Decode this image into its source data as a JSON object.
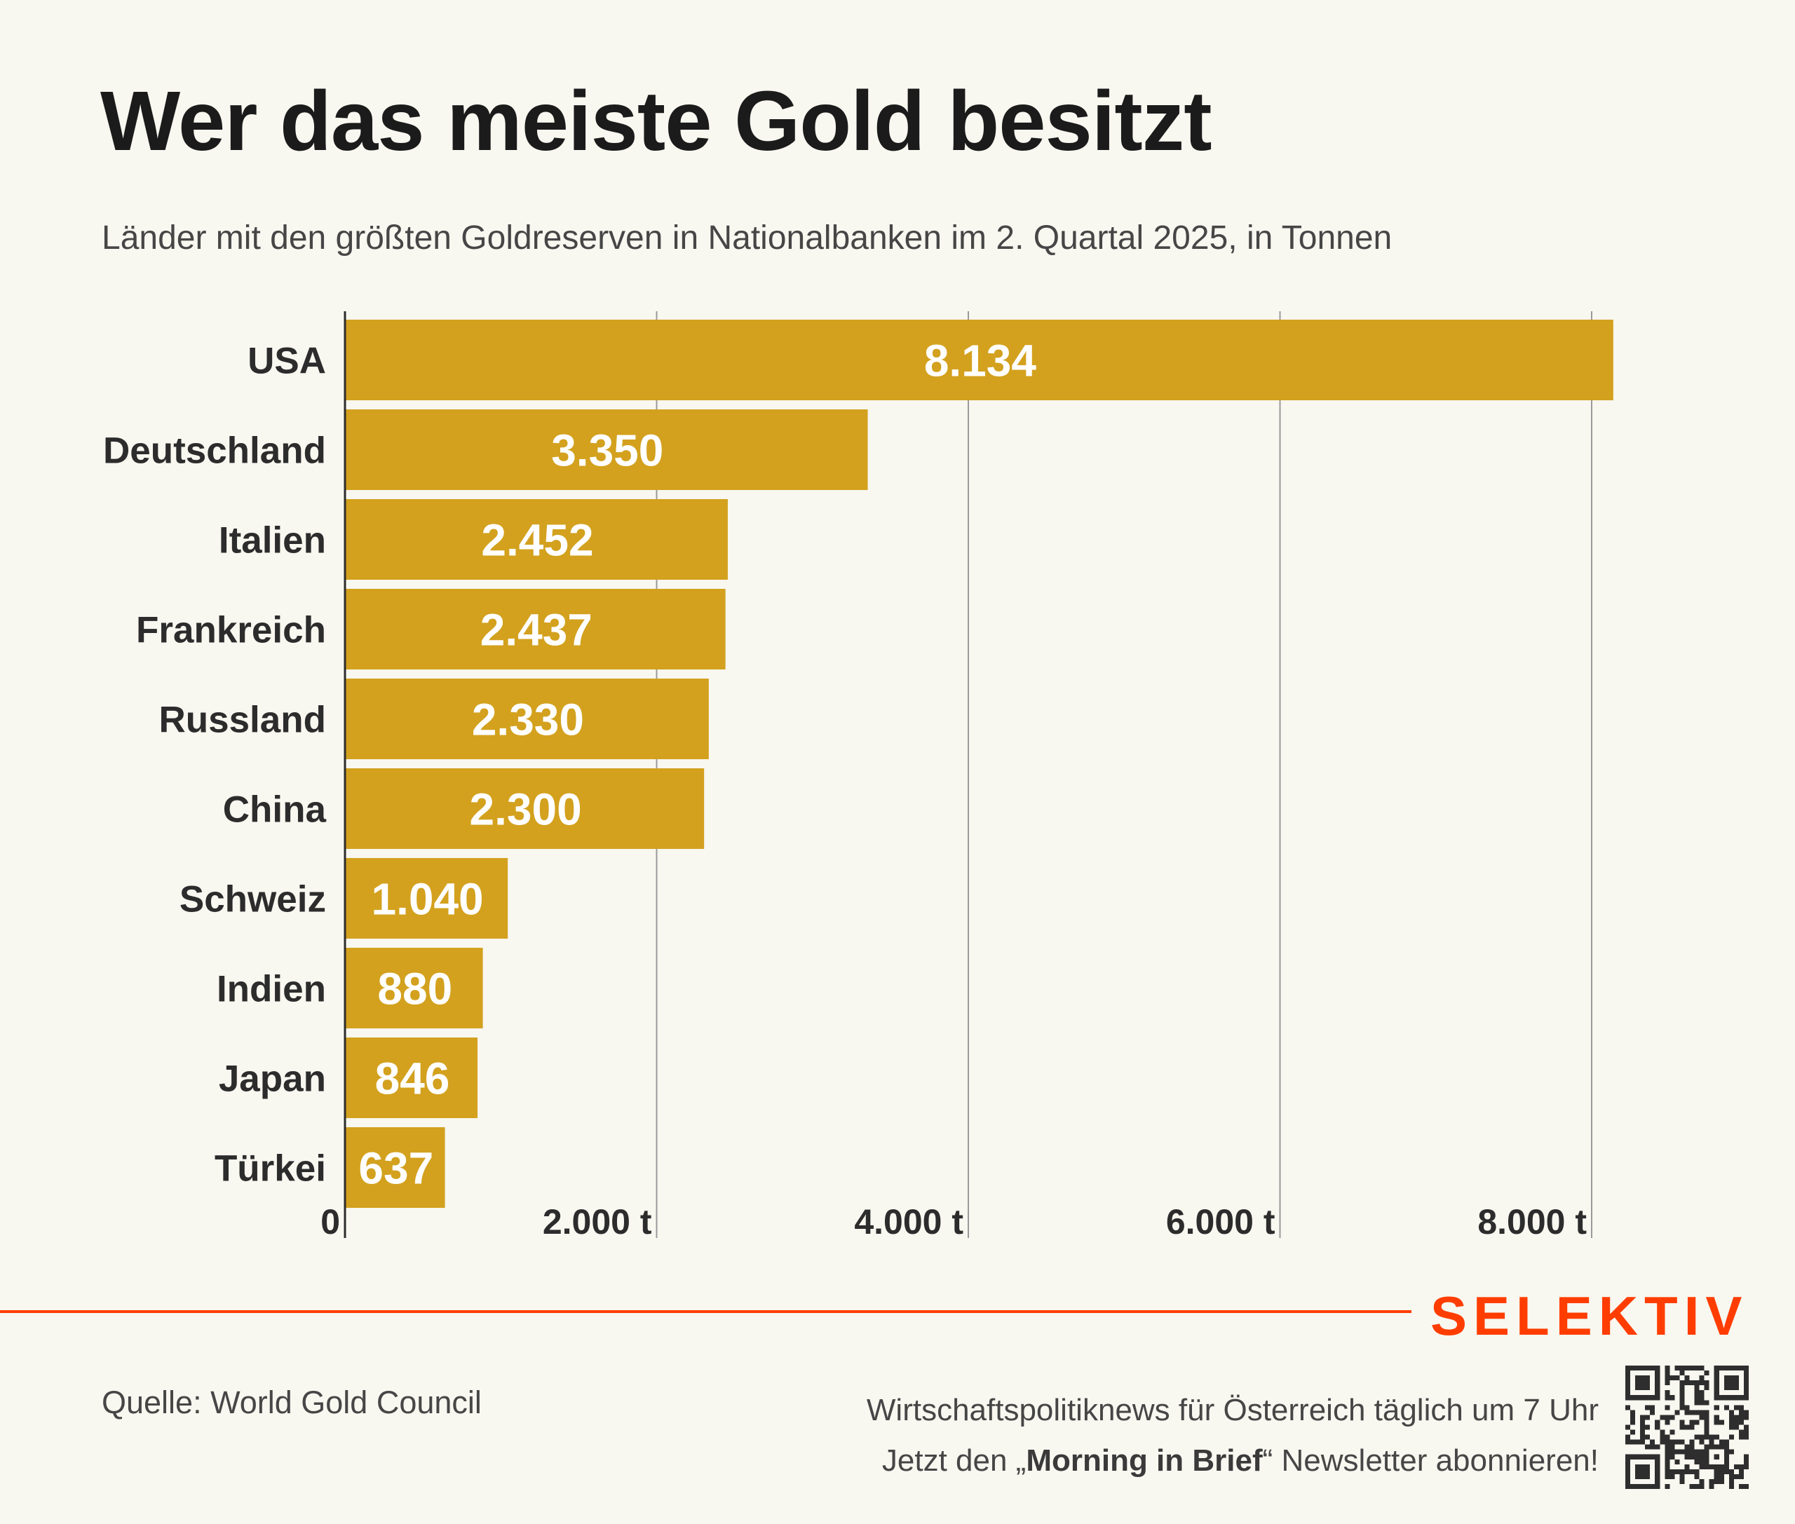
{
  "header": {
    "title": "Wer das meiste Gold besitzt",
    "subtitle": "Länder mit den größten Goldreserven in Nationalbanken im 2. Quartal 2025, in Tonnen"
  },
  "chart_data": {
    "type": "bar",
    "orientation": "horizontal",
    "title": "Wer das meiste Gold besitzt",
    "subtitle": "Länder mit den größten Goldreserven in Nationalbanken im 2. Quartal 2025, in Tonnen",
    "xlabel": "",
    "ylabel": "",
    "unit": "t",
    "categories": [
      "USA",
      "Deutschland",
      "Italien",
      "Frankreich",
      "Russland",
      "China",
      "Schweiz",
      "Indien",
      "Japan",
      "Türkei"
    ],
    "values": [
      8134,
      3350,
      2452,
      2437,
      2330,
      2300,
      1040,
      880,
      846,
      637
    ],
    "value_labels": [
      "8.134",
      "3.350",
      "2.452",
      "2.437",
      "2.330",
      "2.300",
      "1.040",
      "880",
      "846",
      "637"
    ],
    "xlim": [
      0,
      8000
    ],
    "x_ticks": [
      0,
      2000,
      4000,
      6000,
      8000
    ],
    "x_tick_labels": [
      "0",
      "2.000 t",
      "4.000 t",
      "6.000 t",
      "8.000 t"
    ],
    "grid": true,
    "legend": "none",
    "colors": {
      "bar": "#D3A11E",
      "bar_label": "#FFFFFF",
      "grid": "#9A9A9A",
      "axis": "#2C2C2C"
    }
  },
  "footer": {
    "brand": "SELEKTIV",
    "brand_color": "#FF3D00",
    "source": "Quelle: World Gold Council",
    "promo_line1": "Wirtschaftspolitiknews für Österreich täglich um 7 Uhr",
    "promo_line2_pre": "Jetzt den „",
    "promo_line2_bold": "Morning in Brief",
    "promo_line2_post": "“ Newsletter abonnieren!",
    "qr_icon": "qr-code-icon"
  }
}
